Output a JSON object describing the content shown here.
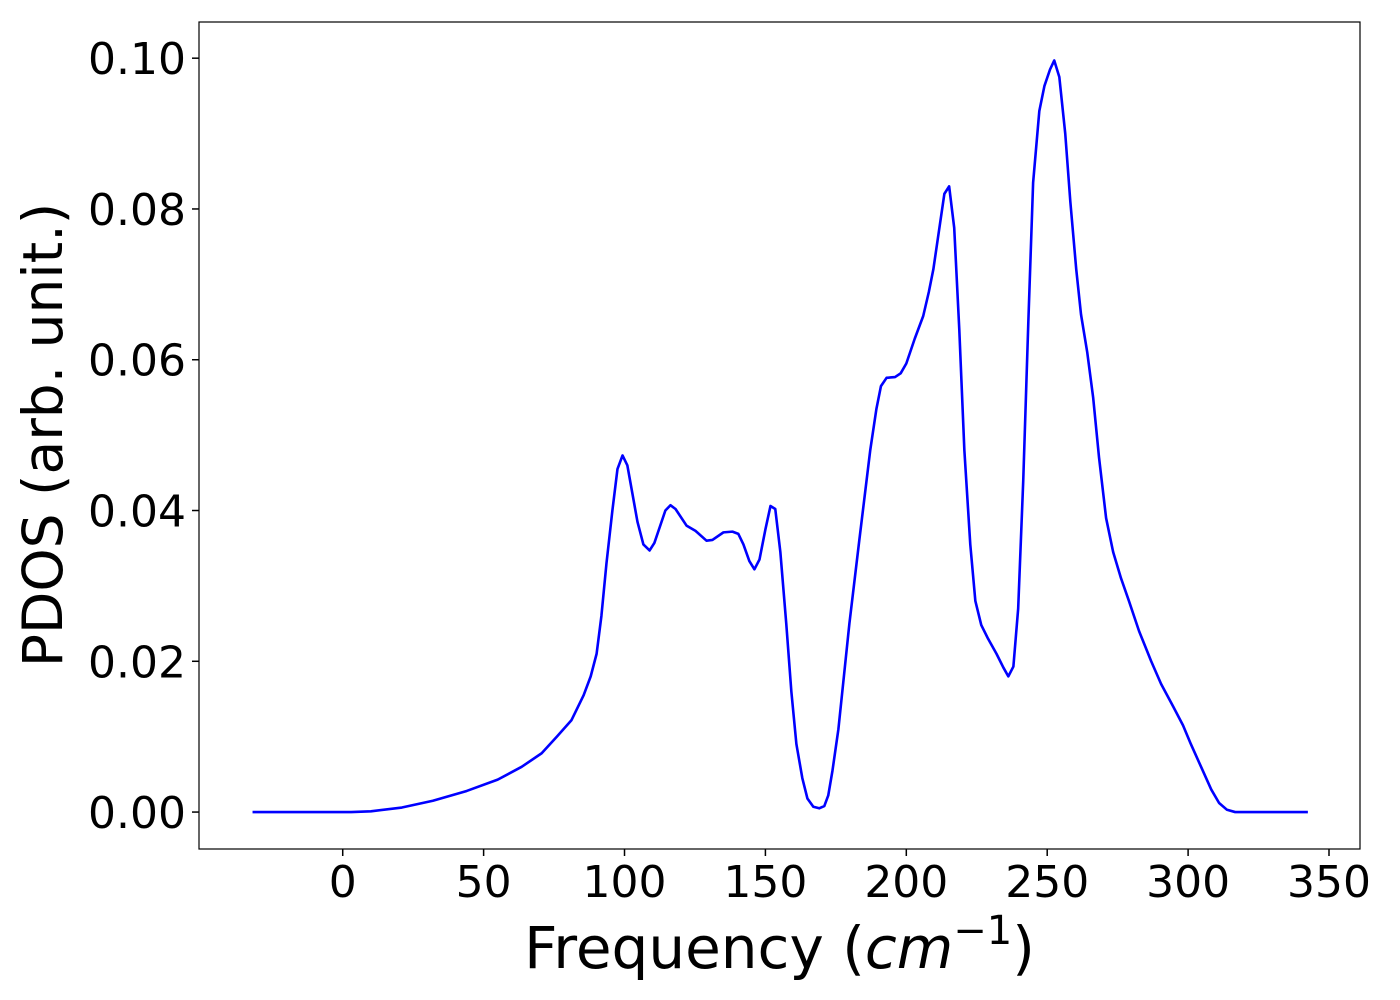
{
  "chart_data": {
    "type": "line",
    "xlabel": {
      "text": "Frequency (",
      "unit": "cm",
      "exponent": "−1",
      "close": ")"
    },
    "ylabel": "PDOS (arb. unit.)",
    "x": [
      -32,
      -20,
      -10,
      0,
      3,
      10,
      21,
      32,
      44,
      55,
      63.5,
      70.6,
      76,
      81.2,
      85.5,
      88,
      90.1,
      91.8,
      93.6,
      95.7,
      97.5,
      99.3,
      101,
      104.6,
      106.7,
      108.9,
      110.6,
      114.5,
      116.3,
      118.1,
      122,
      125.2,
      129.1,
      131.2,
      135.1,
      138.3,
      140.4,
      142.2,
      144.3,
      146.1,
      147.9,
      150,
      151.8,
      153.5,
      155.3,
      157.4,
      159.2,
      161,
      163.1,
      164.9,
      167,
      169.1,
      170.9,
      172.3,
      173.8,
      175.9,
      179.8,
      183.3,
      187.2,
      189.4,
      191,
      193,
      196,
      198,
      200,
      203,
      206,
      208,
      209.6,
      213.5,
      215.2,
      217,
      218.8,
      220.6,
      222.7,
      224.5,
      226.6,
      229,
      232,
      234.4,
      236.2,
      238,
      239.7,
      241.5,
      243.3,
      245,
      247.2,
      249,
      251,
      252.5,
      254.3,
      256.4,
      258.2,
      260.3,
      262,
      264.2,
      266.3,
      268.4,
      270.9,
      273.4,
      276.2,
      279,
      282.6,
      286.9,
      290.4,
      294.7,
      298.2,
      301,
      304.6,
      308.2,
      311,
      313.8,
      316.7,
      330,
      342.5
    ],
    "series": [
      {
        "name": "PDOS",
        "color": "#0000ff",
        "values": [
          0,
          0,
          0,
          0,
          0,
          0.0001,
          0.0006,
          0.0015,
          0.0028,
          0.0043,
          0.006,
          0.0078,
          0.01,
          0.0122,
          0.0155,
          0.018,
          0.021,
          0.026,
          0.033,
          0.04,
          0.0455,
          0.0473,
          0.046,
          0.0385,
          0.0355,
          0.0347,
          0.0357,
          0.04,
          0.0407,
          0.0402,
          0.038,
          0.0373,
          0.036,
          0.0361,
          0.0371,
          0.0372,
          0.0369,
          0.0355,
          0.0333,
          0.0322,
          0.0335,
          0.0375,
          0.0406,
          0.0402,
          0.0345,
          0.025,
          0.016,
          0.009,
          0.0045,
          0.0018,
          0.0007,
          0.0005,
          0.0008,
          0.0022,
          0.0055,
          0.011,
          0.025,
          0.036,
          0.048,
          0.0535,
          0.0565,
          0.0576,
          0.0577,
          0.0582,
          0.0595,
          0.0628,
          0.0658,
          0.069,
          0.072,
          0.082,
          0.083,
          0.0775,
          0.064,
          0.048,
          0.0355,
          0.028,
          0.0248,
          0.023,
          0.021,
          0.0192,
          0.018,
          0.0193,
          0.027,
          0.044,
          0.065,
          0.0835,
          0.093,
          0.0963,
          0.0985,
          0.0997,
          0.0975,
          0.09,
          0.081,
          0.072,
          0.066,
          0.061,
          0.055,
          0.047,
          0.039,
          0.0345,
          0.031,
          0.028,
          0.024,
          0.02,
          0.017,
          0.014,
          0.0115,
          0.009,
          0.006,
          0.003,
          0.0012,
          0.0003,
          0,
          0,
          0
        ]
      }
    ],
    "xlim": [
      -51,
      361
    ],
    "ylim": [
      -0.0049,
      0.1048
    ],
    "xticks": [
      0,
      50,
      100,
      150,
      200,
      250,
      300,
      350
    ],
    "yticks": [
      {
        "value": 0,
        "label": "0.00"
      },
      0.02,
      0.04,
      0.06,
      0.08,
      {
        "value": 0.1,
        "label": "0.10"
      }
    ]
  }
}
